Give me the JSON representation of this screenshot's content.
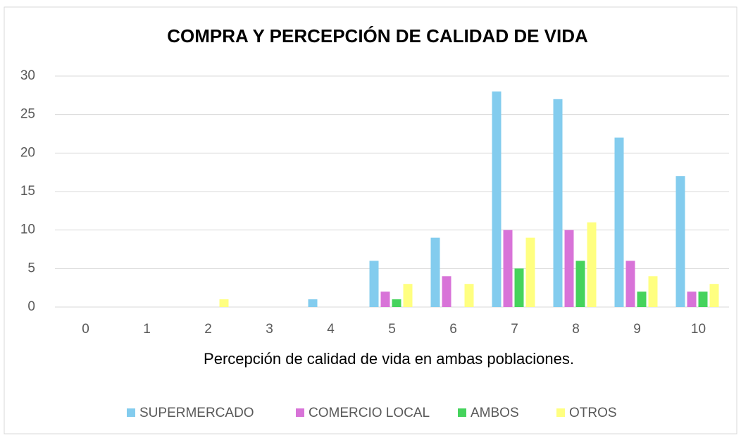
{
  "chart_data": {
    "type": "bar",
    "title": "COMPRA Y PERCEPCIÓN DE CALIDAD DE VIDA",
    "x_label": "Percepción de calidad de vida en ambas poblaciones.",
    "categories": [
      "0",
      "1",
      "2",
      "3",
      "4",
      "5",
      "6",
      "7",
      "8",
      "9",
      "10"
    ],
    "series": [
      {
        "name": "SUPERMERCADO",
        "color": "#83ccee",
        "values": [
          0,
          0,
          0,
          0,
          1,
          6,
          9,
          28,
          27,
          22,
          17
        ]
      },
      {
        "name": "COMERCIO LOCAL",
        "color": "#d873d8",
        "values": [
          0,
          0,
          0,
          0,
          0,
          2,
          4,
          10,
          10,
          6,
          2
        ]
      },
      {
        "name": "AMBOS",
        "color": "#45d35c",
        "values": [
          0,
          0,
          0,
          0,
          0,
          1,
          0,
          5,
          6,
          2,
          2
        ]
      },
      {
        "name": "OTROS",
        "color": "#ffff80",
        "values": [
          0,
          0,
          1,
          0,
          0,
          3,
          3,
          9,
          11,
          4,
          3
        ]
      }
    ],
    "ylim": [
      0,
      30
    ],
    "yticks": [
      0,
      5,
      10,
      15,
      20,
      25,
      30
    ],
    "grid": true,
    "legend": "bottom"
  }
}
